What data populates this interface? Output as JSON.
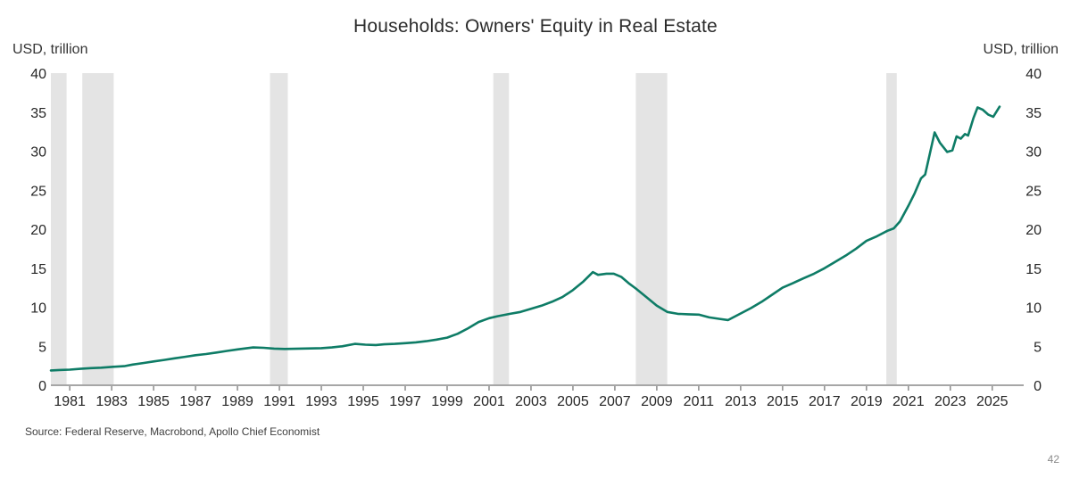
{
  "page": {
    "title": "Households: Owners' Equity in Real Estate",
    "left_axis_unit": "USD, trillion",
    "right_axis_unit": "USD, trillion",
    "source": "Source: Federal Reserve, Macrobond, Apollo Chief Economist",
    "page_number": "42"
  },
  "colors": {
    "line": "#0e7c66",
    "recession_band": "#e4e4e4",
    "axis": "#a6a6a6",
    "tick_mark": "#8c8c8c",
    "tick_text": "#262626"
  },
  "chart_data": {
    "type": "line",
    "title": "Households: Owners' Equity in Real Estate",
    "ylabel_left": "USD, trillion",
    "ylabel_right": "USD, trillion",
    "grid": false,
    "legend": "none",
    "x_domain": [
      1980.1,
      2026.5
    ],
    "ylim": [
      0,
      40
    ],
    "y_ticks": [
      0,
      5,
      10,
      15,
      20,
      25,
      30,
      35,
      40
    ],
    "x_tick_years": [
      1981,
      1983,
      1985,
      1987,
      1989,
      1991,
      1993,
      1995,
      1997,
      1999,
      2001,
      2003,
      2005,
      2007,
      2009,
      2011,
      2013,
      2015,
      2017,
      2019,
      2021,
      2023,
      2025
    ],
    "recession_bands": [
      [
        1980.1,
        1980.85
      ],
      [
        1981.6,
        1983.1
      ],
      [
        1990.55,
        1991.4
      ],
      [
        2001.2,
        2001.95
      ],
      [
        2008.0,
        2009.5
      ],
      [
        2019.95,
        2020.45
      ]
    ],
    "series": [
      {
        "points": [
          [
            1980.1,
            1.9
          ],
          [
            1980.5,
            1.95
          ],
          [
            1981,
            2.0
          ],
          [
            1981.5,
            2.1
          ],
          [
            1982,
            2.2
          ],
          [
            1982.5,
            2.25
          ],
          [
            1983,
            2.35
          ],
          [
            1983.6,
            2.45
          ],
          [
            1984,
            2.65
          ],
          [
            1984.5,
            2.85
          ],
          [
            1985,
            3.05
          ],
          [
            1985.5,
            3.25
          ],
          [
            1986,
            3.45
          ],
          [
            1986.5,
            3.65
          ],
          [
            1987,
            3.85
          ],
          [
            1987.5,
            4.0
          ],
          [
            1988,
            4.2
          ],
          [
            1988.5,
            4.4
          ],
          [
            1989,
            4.6
          ],
          [
            1989.75,
            4.85
          ],
          [
            1990.25,
            4.8
          ],
          [
            1990.75,
            4.7
          ],
          [
            1991.25,
            4.65
          ],
          [
            1992,
            4.7
          ],
          [
            1993,
            4.75
          ],
          [
            1993.5,
            4.85
          ],
          [
            1994,
            5.0
          ],
          [
            1994.6,
            5.3
          ],
          [
            1995.1,
            5.2
          ],
          [
            1995.6,
            5.15
          ],
          [
            1996,
            5.25
          ],
          [
            1996.5,
            5.3
          ],
          [
            1997,
            5.4
          ],
          [
            1997.5,
            5.5
          ],
          [
            1998,
            5.65
          ],
          [
            1998.5,
            5.85
          ],
          [
            1999,
            6.1
          ],
          [
            1999.5,
            6.6
          ],
          [
            2000,
            7.3
          ],
          [
            2000.5,
            8.1
          ],
          [
            2001,
            8.6
          ],
          [
            2001.4,
            8.85
          ],
          [
            2002,
            9.15
          ],
          [
            2002.5,
            9.4
          ],
          [
            2003,
            9.8
          ],
          [
            2003.5,
            10.2
          ],
          [
            2004,
            10.7
          ],
          [
            2004.5,
            11.3
          ],
          [
            2005,
            12.2
          ],
          [
            2005.5,
            13.3
          ],
          [
            2005.95,
            14.5
          ],
          [
            2006.2,
            14.15
          ],
          [
            2006.6,
            14.3
          ],
          [
            2006.95,
            14.3
          ],
          [
            2007.3,
            13.9
          ],
          [
            2007.65,
            13.1
          ],
          [
            2008,
            12.4
          ],
          [
            2008.5,
            11.3
          ],
          [
            2009,
            10.2
          ],
          [
            2009.5,
            9.4
          ],
          [
            2010,
            9.15
          ],
          [
            2010.5,
            9.1
          ],
          [
            2011,
            9.05
          ],
          [
            2011.5,
            8.7
          ],
          [
            2012,
            8.5
          ],
          [
            2012.4,
            8.35
          ],
          [
            2013,
            9.2
          ],
          [
            2013.5,
            9.9
          ],
          [
            2014,
            10.7
          ],
          [
            2014.5,
            11.6
          ],
          [
            2015,
            12.5
          ],
          [
            2015.5,
            13.1
          ],
          [
            2016,
            13.7
          ],
          [
            2016.5,
            14.3
          ],
          [
            2017,
            15.0
          ],
          [
            2017.5,
            15.8
          ],
          [
            2018,
            16.6
          ],
          [
            2018.5,
            17.5
          ],
          [
            2019,
            18.5
          ],
          [
            2019.5,
            19.1
          ],
          [
            2020,
            19.8
          ],
          [
            2020.3,
            20.1
          ],
          [
            2020.6,
            21.0
          ],
          [
            2021,
            23.0
          ],
          [
            2021.3,
            24.6
          ],
          [
            2021.6,
            26.5
          ],
          [
            2021.8,
            27.0
          ],
          [
            2022.25,
            32.4
          ],
          [
            2022.5,
            31.1
          ],
          [
            2022.85,
            29.9
          ],
          [
            2023.1,
            30.1
          ],
          [
            2023.3,
            31.9
          ],
          [
            2023.5,
            31.6
          ],
          [
            2023.7,
            32.2
          ],
          [
            2023.85,
            32.0
          ],
          [
            2024.1,
            34.2
          ],
          [
            2024.3,
            35.6
          ],
          [
            2024.55,
            35.3
          ],
          [
            2024.8,
            34.7
          ],
          [
            2025.05,
            34.4
          ],
          [
            2025.35,
            35.7
          ]
        ]
      }
    ]
  }
}
